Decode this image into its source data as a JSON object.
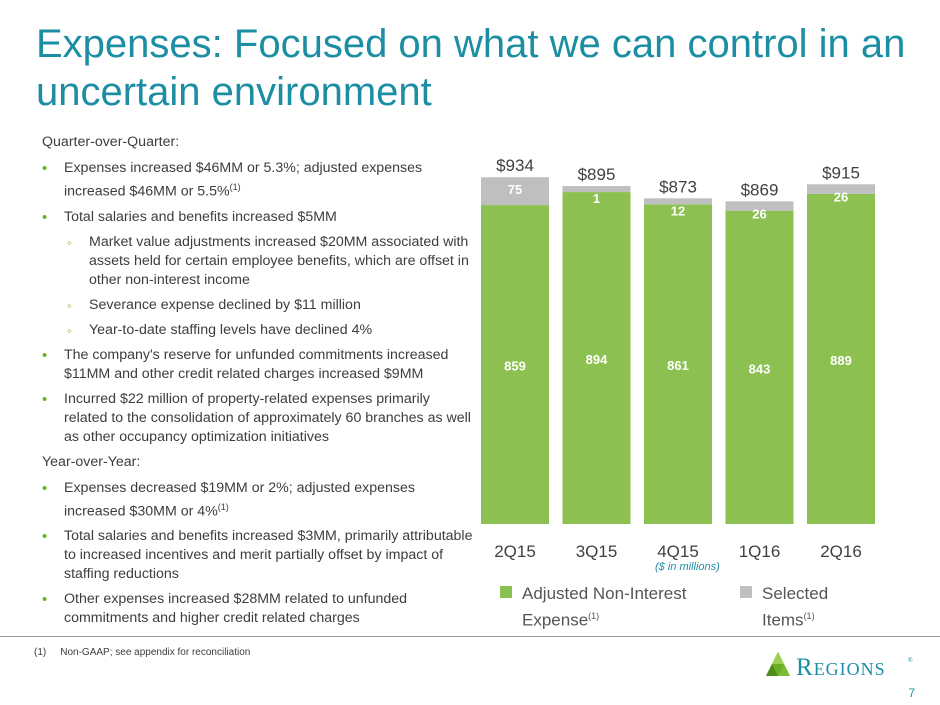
{
  "title": "Expenses:  Focused on what we can control in an uncertain environment",
  "left": {
    "qoq_heading": "Quarter-over-Quarter:",
    "qoq_bullets": [
      {
        "text": "Expenses increased $46MM or 5.3%; adjusted expenses increased $46MM or 5.5%",
        "sup": "(1)"
      },
      {
        "text": "Total salaries and benefits increased $5MM"
      }
    ],
    "qoq_subbullets": [
      "Market value adjustments increased $20MM associated with assets held for certain employee benefits, which are offset in other non-interest income",
      "Severance expense declined by $11 million",
      "Year-to-date staffing levels have declined 4%"
    ],
    "qoq_bullets_2": [
      "The company's reserve for unfunded commitments increased $11MM and other credit related charges increased $9MM",
      "Incurred $22 million of property-related expenses primarily related to the consolidation of approximately 60 branches as well as other occupancy optimization initiatives"
    ],
    "yoy_heading": "Year-over-Year:",
    "yoy_bullets": [
      {
        "text": "Expenses decreased $19MM or 2%; adjusted expenses increased $30MM or 4%",
        "sup": "(1)"
      },
      {
        "text": "Total salaries and benefits increased $3MM, primarily attributable to increased incentives and merit partially offset by impact of staffing reductions"
      },
      {
        "text": "Other expenses increased $28MM related to unfunded commitments and higher credit related charges"
      }
    ]
  },
  "chart_data": {
    "type": "bar",
    "stacked": true,
    "categories": [
      "2Q15",
      "3Q15",
      "4Q15",
      "1Q16",
      "2Q16"
    ],
    "series": [
      {
        "name": "Adjusted Non-Interest Expense",
        "values": [
          859,
          894,
          861,
          843,
          889
        ]
      },
      {
        "name": "Selected Items",
        "values": [
          75,
          1,
          12,
          26,
          26
        ]
      }
    ],
    "totals": [
      "$934",
      "$895",
      "$873",
      "$869",
      "$915"
    ],
    "units_note": "($ in millions)",
    "legend": [
      {
        "label": "Adjusted Non-Interest Expense",
        "sup": "(1)"
      },
      {
        "label": "Selected Items",
        "sup": "(1)"
      }
    ],
    "colors": {
      "adjusted": "#8cc152",
      "selected": "#bfbfbf"
    }
  },
  "footnote": {
    "marker": "(1)",
    "text": "Non-GAAP; see appendix for reconciliation"
  },
  "logo": {
    "text": "REGIONS",
    "mark": "®"
  },
  "page_number": "7",
  "colors": {
    "accent": "#1b8ea3",
    "bullet": "#6ab023"
  }
}
